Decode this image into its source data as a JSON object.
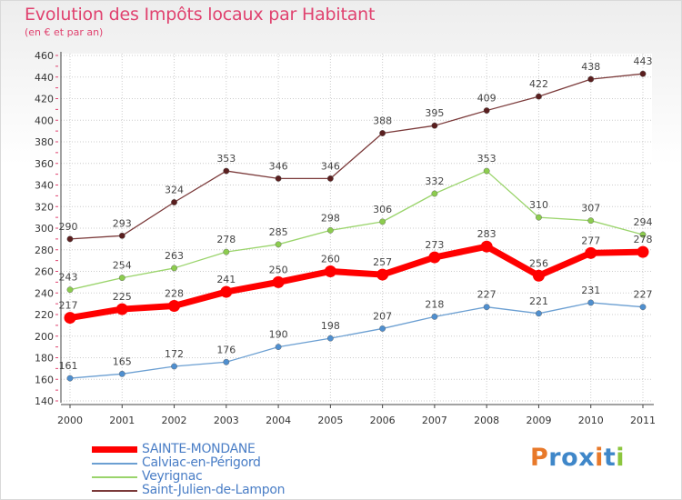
{
  "title": "Evolution des Impôts locaux par Habitant",
  "subtitle": "(en € et par an)",
  "logo": {
    "letters": [
      "P",
      "r",
      "o",
      "x",
      "i",
      "t",
      "i"
    ],
    "colors": [
      "#e8792a",
      "#3f87c9",
      "#3f87c9",
      "#3f87c9",
      "#e8792a",
      "#3f87c9",
      "#8cc63e"
    ]
  },
  "chart_data": {
    "type": "line",
    "title": "Evolution des Impôts locaux par Habitant",
    "subtitle": "(en € et par an)",
    "xlabel": "",
    "ylabel": "",
    "ylim": [
      140,
      460
    ],
    "yticks": [
      140,
      160,
      180,
      200,
      220,
      240,
      260,
      280,
      300,
      320,
      340,
      360,
      380,
      400,
      420,
      440,
      460
    ],
    "grid": true,
    "legend_position": "bottom-left",
    "categories": [
      "2000",
      "2001",
      "2002",
      "2003",
      "2004",
      "2005",
      "2006",
      "2007",
      "2008",
      "2009",
      "2010",
      "2011"
    ],
    "series": [
      {
        "name": "SAINTE-MONDANE",
        "color": "#ff0000",
        "values": [
          217,
          225,
          228,
          241,
          250,
          260,
          257,
          273,
          283,
          256,
          277,
          278
        ]
      },
      {
        "name": "Calviac-en-Périgord",
        "color": "#6b9fd2",
        "values": [
          161,
          165,
          172,
          176,
          190,
          198,
          207,
          218,
          227,
          221,
          231,
          227
        ]
      },
      {
        "name": "Veyrignac",
        "color": "#9ad46b",
        "values": [
          243,
          254,
          263,
          278,
          285,
          298,
          306,
          332,
          353,
          310,
          307,
          294
        ]
      },
      {
        "name": "Saint-Julien-de-Lampon",
        "color": "#7b3a3a",
        "values": [
          290,
          293,
          324,
          353,
          346,
          346,
          388,
          395,
          409,
          422,
          438,
          443
        ]
      }
    ]
  }
}
